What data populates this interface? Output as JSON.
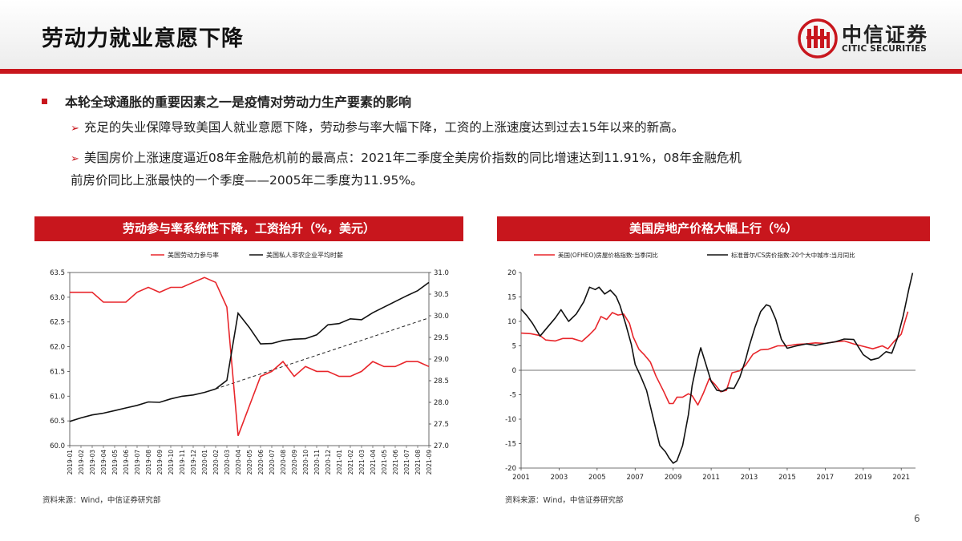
{
  "page": {
    "title": "劳动力就业意愿下降",
    "number": "6"
  },
  "logo": {
    "cn": "中信证券",
    "en": "CITIC SECURITIES"
  },
  "bullets": {
    "main": "本轮全球通胀的重要因素之一是疫情对劳动力生产要素的影响",
    "sub1": "充足的失业保障导致美国人就业意愿下降，劳动参与率大幅下降，工资的上涨速度达到过去15年以来的新高。",
    "sub2_line1": "美国房价上涨速度逼近08年金融危机前的最高点：2021年二季度全美房价指数的同比增速达到11.91%，08年金融危机",
    "sub2_line2": "前房价同比上涨最快的一个季度——2005年二季度为11.95%。"
  },
  "source_text": "资料来源：Wind，中信证券研究部",
  "colors": {
    "brand": "#c8161d",
    "series_red": "#e8262b",
    "series_black": "#111111"
  },
  "chart_data": [
    {
      "type": "line",
      "title": "劳动参与率系统性下降，工资抬升（%，美元）",
      "legend_placement": "top",
      "x": [
        "2019-01",
        "2019-02",
        "2019-03",
        "2019-04",
        "2019-05",
        "2019-06",
        "2019-07",
        "2019-08",
        "2019-09",
        "2019-10",
        "2019-11",
        "2019-12",
        "2020-01",
        "2020-02",
        "2020-03",
        "2020-04",
        "2020-05",
        "2020-06",
        "2020-07",
        "2020-08",
        "2020-09",
        "2020-10",
        "2020-11",
        "2020-12",
        "2021-01",
        "2021-02",
        "2021-03",
        "2021-04",
        "2021-05",
        "2021-06",
        "2021-07",
        "2021-08",
        "2021-09"
      ],
      "y_left": {
        "min": 60.0,
        "max": 63.5,
        "ticks": [
          "60.0",
          "60.5",
          "61.0",
          "61.5",
          "62.0",
          "62.5",
          "63.0",
          "63.5"
        ]
      },
      "y_right": {
        "min": 27.0,
        "max": 31.0,
        "ticks": [
          "27.0",
          "27.5",
          "28.0",
          "28.5",
          "29.0",
          "29.5",
          "30.0",
          "30.5",
          "31.0"
        ]
      },
      "series": [
        {
          "name": "美国劳动力参与率",
          "axis": "left",
          "color": "#e8262b",
          "values": [
            63.1,
            63.1,
            63.1,
            62.9,
            62.9,
            62.9,
            63.1,
            63.2,
            63.1,
            63.2,
            63.2,
            63.3,
            63.4,
            63.3,
            62.8,
            60.2,
            60.8,
            61.4,
            61.5,
            61.7,
            61.4,
            61.6,
            61.5,
            61.5,
            61.4,
            61.4,
            61.5,
            61.7,
            61.6,
            61.6,
            61.7,
            61.7,
            61.6
          ]
        },
        {
          "name": "美国私人非农企业平均时薪",
          "axis": "right",
          "color": "#111111",
          "values": [
            27.56,
            27.64,
            27.71,
            27.75,
            27.81,
            27.87,
            27.93,
            28.01,
            28.0,
            28.08,
            28.14,
            28.17,
            28.23,
            28.31,
            28.51,
            30.06,
            29.73,
            29.35,
            29.36,
            29.43,
            29.46,
            29.47,
            29.56,
            29.79,
            29.82,
            29.93,
            29.91,
            30.07,
            30.2,
            30.33,
            30.46,
            30.58,
            30.77
          ]
        }
      ],
      "trend_line": {
        "from_index": 13,
        "to_index": 32,
        "axis": "right",
        "from_value": 28.31,
        "to_value": 29.95,
        "style": "dashed"
      }
    },
    {
      "type": "line",
      "title": "美国房地产价格大幅上行（%）",
      "legend_placement": "top",
      "x_range": [
        2001,
        2021.75
      ],
      "x_ticks": [
        "2001",
        "2003",
        "2005",
        "2007",
        "2009",
        "2011",
        "2013",
        "2015",
        "2017",
        "2019",
        "2021"
      ],
      "y_axis": {
        "min": -20,
        "max": 20,
        "ticks": [
          "20",
          "15",
          "10",
          "5",
          "0",
          "-5",
          "-10",
          "-15",
          "-20"
        ]
      },
      "series": [
        {
          "name": "美国(OFHEO)房屋价格指数:当季同比",
          "color": "#e8262b",
          "points": [
            [
              2001.0,
              7.6
            ],
            [
              2001.5,
              7.5
            ],
            [
              2002.0,
              7.1
            ],
            [
              2002.3,
              6.2
            ],
            [
              2002.8,
              6.0
            ],
            [
              2003.2,
              6.5
            ],
            [
              2003.7,
              6.5
            ],
            [
              2004.2,
              5.9
            ],
            [
              2004.6,
              7.3
            ],
            [
              2004.9,
              8.5
            ],
            [
              2005.2,
              11.0
            ],
            [
              2005.5,
              10.4
            ],
            [
              2005.8,
              11.8
            ],
            [
              2006.1,
              11.3
            ],
            [
              2006.4,
              11.5
            ],
            [
              2006.7,
              9.6
            ],
            [
              2006.9,
              6.8
            ],
            [
              2007.2,
              4.3
            ],
            [
              2007.5,
              3.1
            ],
            [
              2007.8,
              1.7
            ],
            [
              2008.1,
              -1.2
            ],
            [
              2008.5,
              -4.3
            ],
            [
              2008.8,
              -6.8
            ],
            [
              2009.0,
              -6.8
            ],
            [
              2009.2,
              -5.5
            ],
            [
              2009.5,
              -5.5
            ],
            [
              2009.8,
              -4.8
            ],
            [
              2010.0,
              -5.2
            ],
            [
              2010.3,
              -7.1
            ],
            [
              2010.6,
              -4.6
            ],
            [
              2010.9,
              -1.7
            ],
            [
              2011.2,
              -2.9
            ],
            [
              2011.5,
              -4.4
            ],
            [
              2011.8,
              -4.1
            ],
            [
              2012.1,
              -0.5
            ],
            [
              2012.5,
              -0.1
            ],
            [
              2012.8,
              1.0
            ],
            [
              2013.2,
              3.3
            ],
            [
              2013.6,
              4.2
            ],
            [
              2014.0,
              4.3
            ],
            [
              2014.5,
              5.0
            ],
            [
              2015.0,
              5.0
            ],
            [
              2015.5,
              5.3
            ],
            [
              2016.0,
              5.4
            ],
            [
              2016.5,
              5.6
            ],
            [
              2017.0,
              5.5
            ],
            [
              2017.5,
              5.8
            ],
            [
              2018.0,
              6.0
            ],
            [
              2018.5,
              5.4
            ],
            [
              2019.0,
              4.9
            ],
            [
              2019.5,
              4.4
            ],
            [
              2020.0,
              5.0
            ],
            [
              2020.3,
              4.4
            ],
            [
              2020.6,
              5.8
            ],
            [
              2021.0,
              7.4
            ],
            [
              2021.35,
              12.0
            ]
          ]
        },
        {
          "name": "标准普尔/CS房价指数:20个大中城市:当月同比",
          "color": "#111111",
          "points": [
            [
              2001.0,
              12.5
            ],
            [
              2001.3,
              11.2
            ],
            [
              2001.6,
              9.6
            ],
            [
              2002.0,
              7.0
            ],
            [
              2002.3,
              8.4
            ],
            [
              2002.8,
              10.7
            ],
            [
              2003.1,
              12.4
            ],
            [
              2003.5,
              10.0
            ],
            [
              2003.9,
              11.5
            ],
            [
              2004.3,
              14.0
            ],
            [
              2004.6,
              17.0
            ],
            [
              2004.9,
              16.5
            ],
            [
              2005.1,
              17.0
            ],
            [
              2005.4,
              15.6
            ],
            [
              2005.7,
              16.4
            ],
            [
              2006.0,
              15.1
            ],
            [
              2006.2,
              13.3
            ],
            [
              2006.5,
              9.5
            ],
            [
              2006.8,
              5.3
            ],
            [
              2007.0,
              1.2
            ],
            [
              2007.3,
              -1.3
            ],
            [
              2007.6,
              -4.1
            ],
            [
              2008.0,
              -10.6
            ],
            [
              2008.3,
              -15.4
            ],
            [
              2008.6,
              -16.7
            ],
            [
              2008.8,
              -18.0
            ],
            [
              2009.0,
              -19.0
            ],
            [
              2009.2,
              -18.5
            ],
            [
              2009.5,
              -15.4
            ],
            [
              2009.8,
              -9.1
            ],
            [
              2010.0,
              -3.1
            ],
            [
              2010.3,
              2.4
            ],
            [
              2010.45,
              4.6
            ],
            [
              2010.7,
              1.5
            ],
            [
              2011.0,
              -2.3
            ],
            [
              2011.3,
              -4.1
            ],
            [
              2011.6,
              -4.3
            ],
            [
              2011.9,
              -3.6
            ],
            [
              2012.2,
              -3.7
            ],
            [
              2012.5,
              -1.5
            ],
            [
              2012.8,
              2.0
            ],
            [
              2013.0,
              4.9
            ],
            [
              2013.3,
              8.7
            ],
            [
              2013.6,
              12.0
            ],
            [
              2013.9,
              13.4
            ],
            [
              2014.1,
              13.1
            ],
            [
              2014.4,
              10.4
            ],
            [
              2014.7,
              6.3
            ],
            [
              2015.0,
              4.5
            ],
            [
              2015.5,
              5.0
            ],
            [
              2016.0,
              5.4
            ],
            [
              2016.5,
              5.1
            ],
            [
              2017.0,
              5.5
            ],
            [
              2017.5,
              5.8
            ],
            [
              2018.0,
              6.4
            ],
            [
              2018.5,
              6.3
            ],
            [
              2019.0,
              3.2
            ],
            [
              2019.4,
              2.1
            ],
            [
              2019.8,
              2.5
            ],
            [
              2020.2,
              3.8
            ],
            [
              2020.5,
              3.5
            ],
            [
              2020.8,
              6.6
            ],
            [
              2021.1,
              11.1
            ],
            [
              2021.4,
              16.6
            ],
            [
              2021.6,
              19.9
            ]
          ]
        }
      ]
    }
  ]
}
